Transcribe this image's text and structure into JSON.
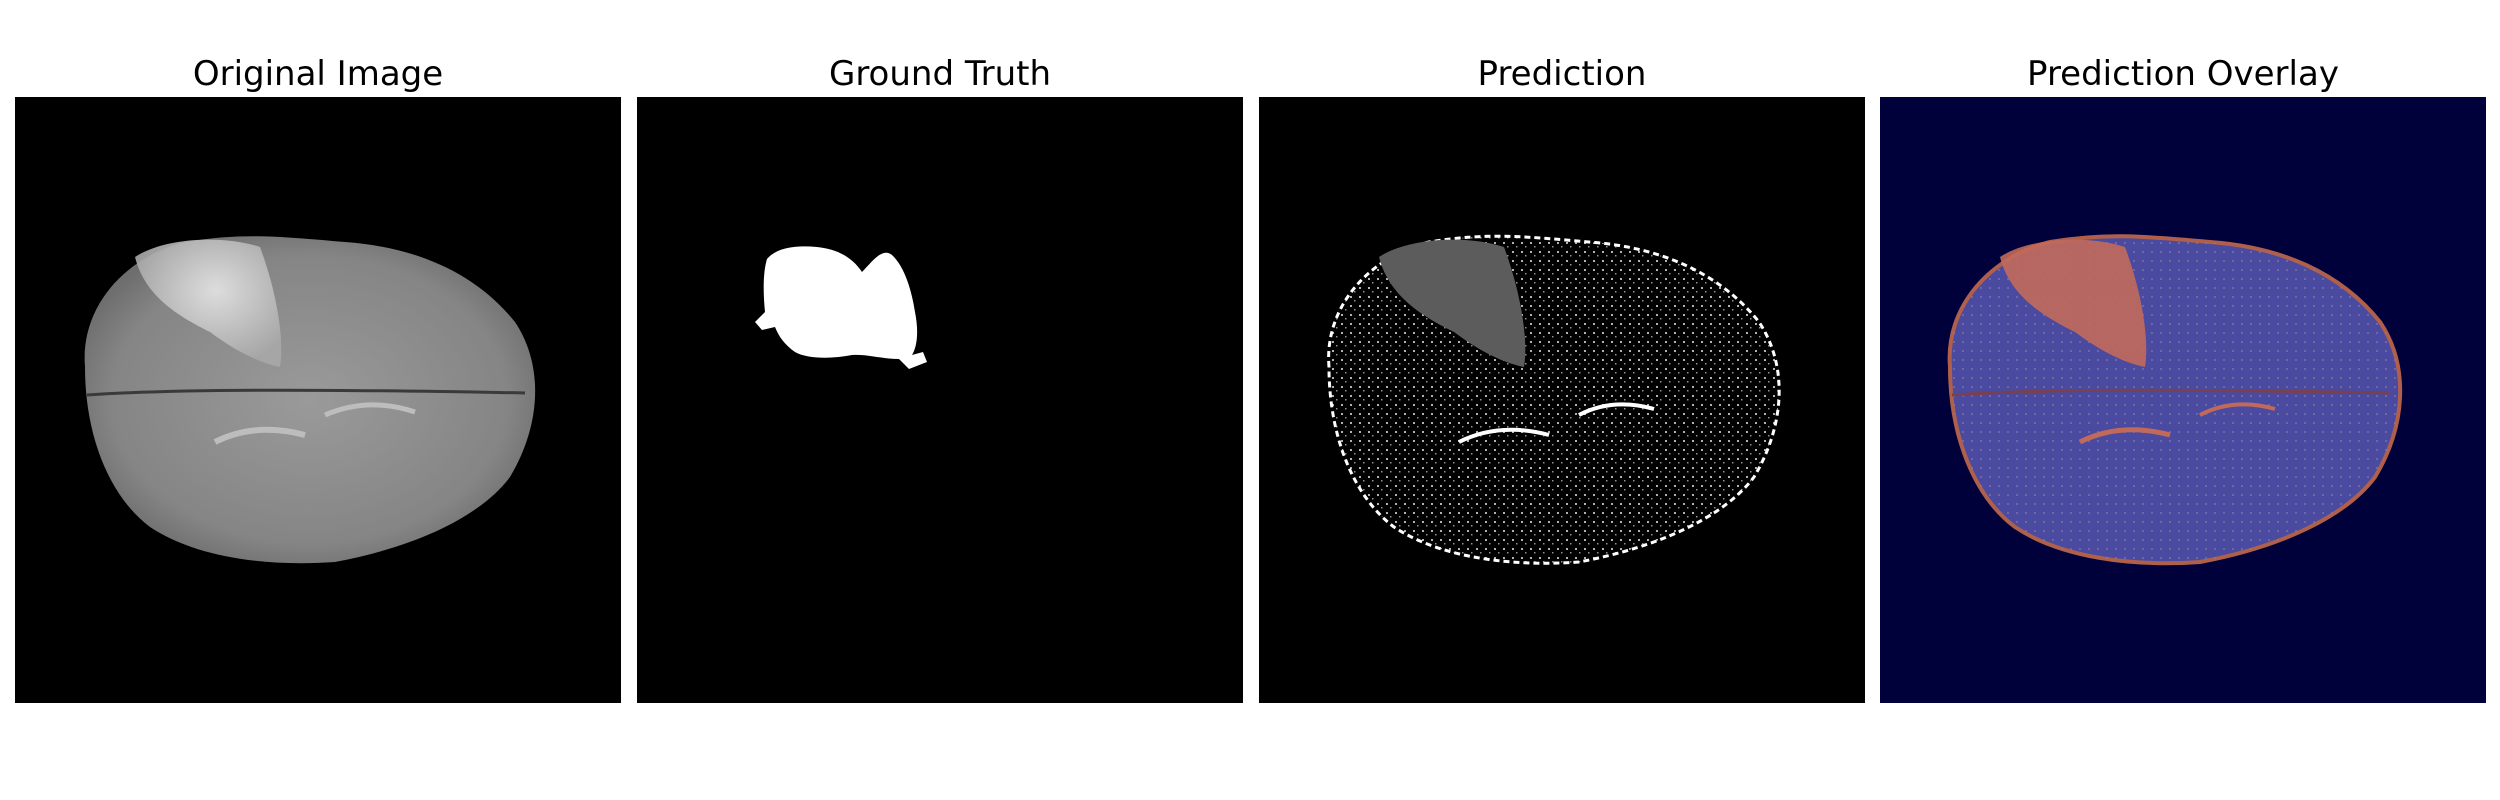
{
  "figure": {
    "panels": [
      {
        "id": "original",
        "title": "Original Image",
        "background": "#000000"
      },
      {
        "id": "ground-truth",
        "title": "Ground Truth",
        "background": "#000000"
      },
      {
        "id": "prediction",
        "title": "Prediction",
        "background": "#000000"
      },
      {
        "id": "overlay",
        "title": "Prediction Overlay",
        "background": "#00003a"
      }
    ],
    "colors": {
      "brain_gray": "#8a8a8a",
      "tumor_bright": "#d8d8d8",
      "mask_white": "#ffffff",
      "prediction_gray": "#5c5c5c",
      "overlay_navy": "#00003a",
      "overlay_blue": "#4a4aa0",
      "overlay_orange": "#c26a5a"
    }
  }
}
